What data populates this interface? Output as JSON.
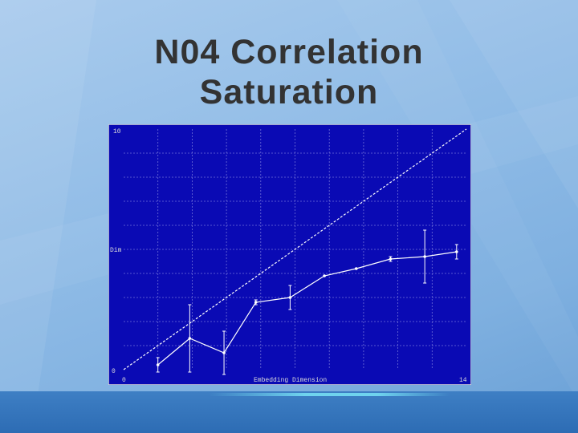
{
  "slide": {
    "title_line1": "N04 Correlation",
    "title_line2": "Saturation"
  },
  "colors": {
    "plot_background": "#0a0ab4",
    "plot_border": "#d8d8d8",
    "grid": "#6f6fd8",
    "series": "#ffffff",
    "text": "#333333"
  },
  "chart_data": {
    "type": "line",
    "title": "",
    "xlabel": "Embedding Dimension",
    "ylabel": "Dim",
    "xlim": [
      0,
      14
    ],
    "ylim": [
      0,
      10
    ],
    "x_tick_labels": [
      "0",
      "14"
    ],
    "y_tick_labels": [
      "0",
      "10"
    ],
    "grid": true,
    "series": [
      {
        "style": "dashed",
        "x": [
          0,
          14
        ],
        "y": [
          0,
          10
        ]
      },
      {
        "style": "solid-with-error-bars",
        "x": [
          1.4,
          2.7,
          4.1,
          5.4,
          6.8,
          8.2,
          9.5,
          10.9,
          12.3,
          13.6
        ],
        "y": [
          0.2,
          1.3,
          0.7,
          2.8,
          3.0,
          3.9,
          4.2,
          4.6,
          4.7,
          4.9
        ],
        "error": [
          0.3,
          1.4,
          0.9,
          0.1,
          0.5,
          0.0,
          0.0,
          0.1,
          1.1,
          0.3
        ]
      }
    ]
  }
}
